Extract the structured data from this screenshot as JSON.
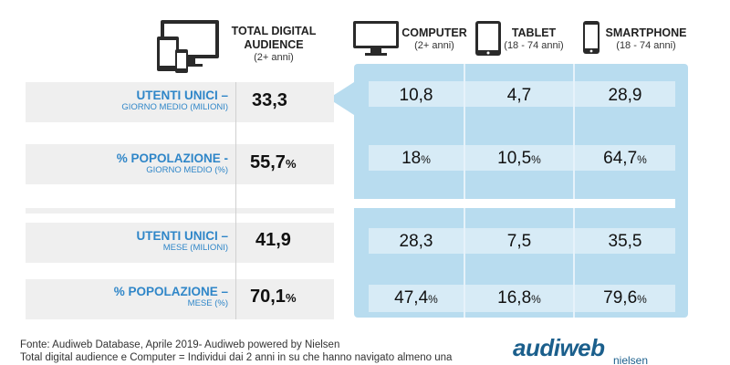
{
  "chart_data": {
    "type": "table",
    "headers": {
      "total": {
        "title_line1": "TOTAL DIGITAL",
        "title_line2": "AUDIENCE",
        "sub": "(2+ anni)"
      },
      "computer": {
        "title": "COMPUTER",
        "sub": "(2+ anni)"
      },
      "tablet": {
        "title": "TABLET",
        "sub": "(18 - 74 anni)"
      },
      "smartphone": {
        "title": "SMARTPHONE",
        "sub": "(18 - 74 anni)"
      }
    },
    "rows": [
      {
        "label": "UTENTI UNICI –",
        "sub": "GIORNO MEDIO (MILIONI)",
        "total": "33,3",
        "total_pct": "",
        "computer": "10,8",
        "computer_pct": "",
        "tablet": "4,7",
        "tablet_pct": "",
        "smartphone": "28,9",
        "smartphone_pct": ""
      },
      {
        "label": "% POPOLAZIONE -",
        "sub": "GIORNO MEDIO (%)",
        "total": "55,7",
        "total_pct": "%",
        "computer": "18",
        "computer_pct": "%",
        "tablet": "10,5",
        "tablet_pct": "%",
        "smartphone": "64,7",
        "smartphone_pct": "%"
      },
      {
        "label": "UTENTI UNICI –",
        "sub": "MESE (MILIONI)",
        "total": "41,9",
        "total_pct": "",
        "computer": "28,3",
        "computer_pct": "",
        "tablet": "7,5",
        "tablet_pct": "",
        "smartphone": "35,5",
        "smartphone_pct": ""
      },
      {
        "label": "% POPOLAZIONE –",
        "sub": "MESE (%)",
        "total": "70,1",
        "total_pct": "%",
        "computer": "47,4",
        "computer_pct": "%",
        "tablet": "16,8",
        "tablet_pct": "%",
        "smartphone": "79,6",
        "smartphone_pct": "%"
      }
    ]
  },
  "footer": {
    "line1": "Fonte: Audiweb Database, Aprile 2019- Audiweb powered by Nielsen",
    "line2": "Total digital audience e Computer = Individui dai 2 anni in su che hanno navigato almeno una"
  },
  "logo": {
    "text": "audiweb",
    "sub": "nielsen"
  },
  "colors": {
    "panel": "#b8dcef",
    "panel_band": "#d7ebf6",
    "label_band": "#efefef",
    "label_text": "#2f86c8",
    "logo": "#1b5f8c"
  },
  "icons": [
    "multi-device-icon",
    "computer-monitor-icon",
    "tablet-icon",
    "smartphone-icon"
  ]
}
